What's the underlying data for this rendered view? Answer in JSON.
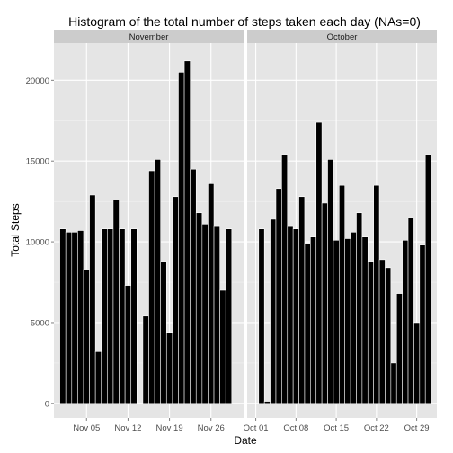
{
  "chart_data": {
    "type": "bar",
    "title": "Histogram of the total number of steps taken each day (NAs=0)",
    "xlabel": "Date",
    "ylabel": "Total Steps",
    "ylim": [
      -900,
      22300
    ],
    "yticks": [
      0,
      5000,
      10000,
      15000,
      20000
    ],
    "grid": true,
    "colors": {
      "panel_bg": "#e5e5e5",
      "strip_bg": "#cccccc",
      "grid_major": "#ffffff",
      "grid_minor": "#f2f2f2",
      "bar_fill": "#000000",
      "bar_outline": "#ffffff"
    },
    "panels": [
      {
        "label": "November",
        "xticks": [
          "Nov 05",
          "Nov 12",
          "Nov 19",
          "Nov 26"
        ],
        "dates": [
          "Nov 01",
          "Nov 02",
          "Nov 03",
          "Nov 04",
          "Nov 05",
          "Nov 06",
          "Nov 07",
          "Nov 08",
          "Nov 09",
          "Nov 10",
          "Nov 11",
          "Nov 12",
          "Nov 13",
          "Nov 14",
          "Nov 15",
          "Nov 16",
          "Nov 17",
          "Nov 18",
          "Nov 19",
          "Nov 20",
          "Nov 21",
          "Nov 22",
          "Nov 23",
          "Nov 24",
          "Nov 25",
          "Nov 26",
          "Nov 27",
          "Nov 28",
          "Nov 29",
          "Nov 30"
        ],
        "values": [
          10800,
          10600,
          10600,
          10700,
          8300,
          12900,
          3200,
          10800,
          10800,
          12600,
          10800,
          7300,
          10800,
          0,
          5400,
          14400,
          15100,
          8800,
          4400,
          12800,
          20500,
          21200,
          14500,
          11800,
          11100,
          13600,
          11000,
          7000,
          10800,
          0
        ]
      },
      {
        "label": "October",
        "xticks": [
          "Oct 01",
          "Oct 08",
          "Oct 15",
          "Oct 22",
          "Oct 29"
        ],
        "dates": [
          "Oct 01",
          "Oct 02",
          "Oct 03",
          "Oct 04",
          "Oct 05",
          "Oct 06",
          "Oct 07",
          "Oct 08",
          "Oct 09",
          "Oct 10",
          "Oct 11",
          "Oct 12",
          "Oct 13",
          "Oct 14",
          "Oct 15",
          "Oct 16",
          "Oct 17",
          "Oct 18",
          "Oct 19",
          "Oct 20",
          "Oct 21",
          "Oct 22",
          "Oct 23",
          "Oct 24",
          "Oct 25",
          "Oct 26",
          "Oct 27",
          "Oct 28",
          "Oct 29",
          "Oct 30",
          "Oct 31"
        ],
        "values": [
          0,
          10800,
          126,
          11400,
          13300,
          15400,
          11000,
          10800,
          12800,
          9900,
          10300,
          17400,
          12400,
          15100,
          10100,
          13500,
          10200,
          10600,
          11800,
          10300,
          8800,
          13500,
          8900,
          8400,
          2500,
          6800,
          10100,
          11500,
          5000,
          9800,
          15400
        ]
      }
    ]
  }
}
